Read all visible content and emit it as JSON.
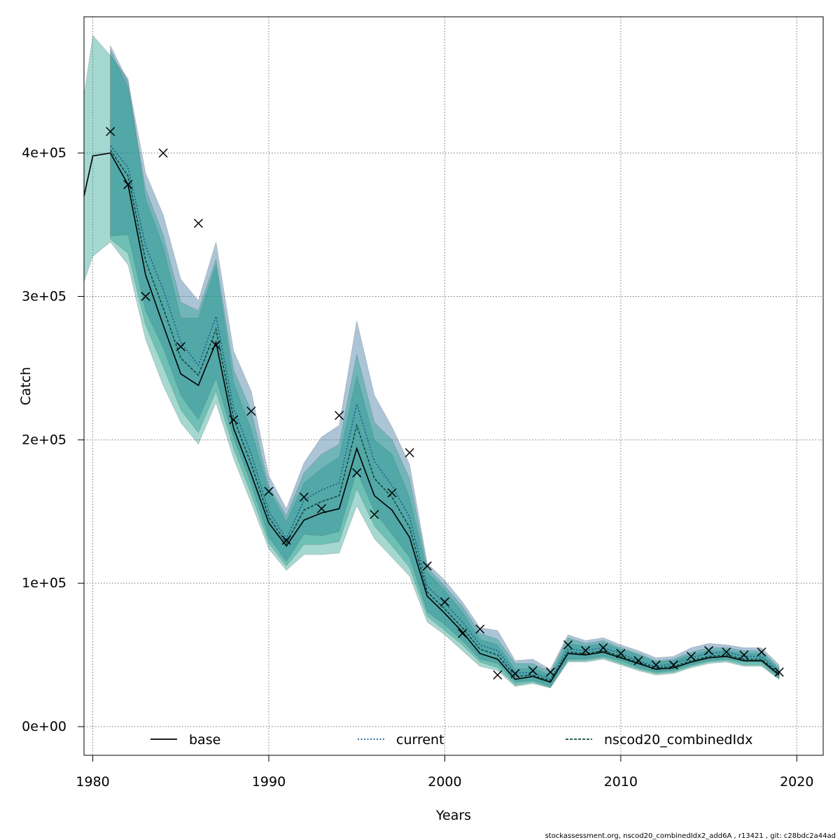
{
  "chart_data": {
    "type": "line",
    "title": "",
    "xlabel": "Years",
    "ylabel": "Catch",
    "xlim": [
      1979.5,
      2021.5
    ],
    "ylim": [
      -20000,
      495000
    ],
    "x_ticks": [
      1980,
      1990,
      2000,
      2010,
      2020
    ],
    "x_tick_labels": [
      "1980",
      "1990",
      "2000",
      "2010",
      "2020"
    ],
    "y_ticks": [
      0,
      100000,
      200000,
      300000,
      400000
    ],
    "y_tick_labels": [
      "0e+00",
      "1e+05",
      "2e+05",
      "3e+05",
      "4e+05"
    ],
    "grid": true,
    "legend_position": "bottom",
    "colors": {
      "band_primary": "#1f9d8a",
      "band_secondary": "#2d6e9b",
      "band_edge": "#555555",
      "line_base": "#000000",
      "line_current": "#1a5c8c",
      "line_combined": "#0f4a40",
      "grid": "#777777"
    },
    "legend": [
      {
        "label": "base",
        "style": "solid"
      },
      {
        "label": "current",
        "style": "dotted"
      },
      {
        "label": "nscod20_combinedIdx",
        "style": "dashed"
      }
    ],
    "series": [
      {
        "name": "base",
        "x": [
          1979.5,
          1980,
          1981,
          1982,
          1983,
          1984,
          1985,
          1986,
          1987,
          1988,
          1989,
          1990,
          1991,
          1992,
          1993,
          1994,
          1995,
          1996,
          1997,
          1998,
          1999,
          2000,
          2001,
          2002,
          2003,
          2004,
          2005,
          2006,
          2007,
          2008,
          2009,
          2010,
          2011,
          2012,
          2013,
          2014,
          2015,
          2016,
          2017,
          2018,
          2019
        ],
        "values": [
          370000,
          398000,
          400000,
          378000,
          315000,
          280000,
          246000,
          238000,
          268000,
          208000,
          176000,
          142000,
          126000,
          144000,
          149000,
          152000,
          194000,
          161000,
          151000,
          132000,
          91000,
          79000,
          66000,
          51000,
          47000,
          33000,
          35000,
          31000,
          51000,
          50000,
          52000,
          48000,
          44000,
          40000,
          41000,
          45000,
          48000,
          49000,
          46000,
          46000,
          36000
        ],
        "lower": [
          310000,
          328000,
          338000,
          322000,
          270000,
          238000,
          212000,
          197000,
          226000,
          187000,
          156000,
          124000,
          109000,
          120000,
          120000,
          121000,
          154000,
          131000,
          118000,
          105000,
          73000,
          64000,
          53000,
          42000,
          39000,
          28000,
          30000,
          27000,
          45000,
          45000,
          47000,
          43000,
          39000,
          36000,
          37000,
          41000,
          44000,
          45000,
          42000,
          42000,
          33000
        ],
        "upper": [
          440000,
          482000,
          468000,
          452000,
          368000,
          335000,
          285000,
          285000,
          322000,
          240000,
          207000,
          165000,
          143000,
          170000,
          180000,
          188000,
          245000,
          200000,
          190000,
          160000,
          108000,
          95000,
          80000,
          61000,
          57000,
          40000,
          41000,
          36000,
          58000,
          56000,
          58000,
          54000,
          50000,
          45000,
          46000,
          50000,
          53000,
          53000,
          51000,
          51000,
          40000
        ]
      },
      {
        "name": "current",
        "x": [
          1981,
          1982,
          1983,
          1984,
          1985,
          1986,
          1987,
          1988,
          1989,
          1990,
          1991,
          1992,
          1993,
          1994,
          1995,
          1996,
          1997,
          1998,
          1999,
          2000,
          2001,
          2002,
          2003,
          2004,
          2005,
          2006,
          2007,
          2008,
          2009,
          2010,
          2011,
          2012,
          2013,
          2014,
          2015,
          2016,
          2017,
          2018,
          2019
        ],
        "values": [
          405000,
          390000,
          335000,
          305000,
          268000,
          252000,
          286000,
          222000,
          190000,
          150000,
          131000,
          158000,
          165000,
          170000,
          225000,
          185000,
          168000,
          146000,
          98000,
          86000,
          73000,
          57000,
          53000,
          37000,
          38000,
          33000,
          54000,
          53000,
          55000,
          51000,
          46000,
          42000,
          44000,
          48000,
          51000,
          52000,
          49000,
          49000,
          38000
        ],
        "lower": [
          342000,
          343000,
          290000,
          264000,
          231000,
          214000,
          243000,
          201000,
          169000,
          132000,
          115000,
          134000,
          133000,
          136000,
          178000,
          150000,
          134000,
          118000,
          80000,
          71000,
          60000,
          47000,
          44000,
          31000,
          32000,
          28000,
          47000,
          47000,
          49000,
          46000,
          41000,
          38000,
          39000,
          43000,
          46000,
          47000,
          45000,
          45000,
          34000
        ],
        "upper": [
          475000,
          450000,
          386000,
          357000,
          312000,
          297000,
          338000,
          262000,
          234000,
          175000,
          152000,
          184000,
          202000,
          210000,
          283000,
          231000,
          209000,
          183000,
          114000,
          102000,
          87000,
          69000,
          67000,
          46000,
          47000,
          40000,
          64000,
          60000,
          62000,
          57000,
          53000,
          48000,
          49000,
          55000,
          58000,
          57000,
          55000,
          55000,
          43000
        ]
      },
      {
        "name": "nscod20_combinedIdx",
        "x": [
          1981,
          1982,
          1983,
          1984,
          1985,
          1986,
          1987,
          1988,
          1989,
          1990,
          1991,
          1992,
          1993,
          1994,
          1995,
          1996,
          1997,
          1998,
          1999,
          2000,
          2001,
          2002,
          2003,
          2004,
          2005,
          2006,
          2007,
          2008,
          2009,
          2010,
          2011,
          2012,
          2013,
          2014,
          2015,
          2016,
          2017,
          2018,
          2019
        ],
        "values": [
          402000,
          384000,
          325000,
          292000,
          257000,
          245000,
          277000,
          215000,
          183000,
          146000,
          128000,
          151000,
          157000,
          161000,
          210000,
          173000,
          160000,
          139000,
          94000,
          82000,
          69000,
          54000,
          50000,
          35000,
          36000,
          32000,
          52000,
          51000,
          53000,
          49000,
          45000,
          41000,
          42000,
          46000,
          49000,
          50000,
          47000,
          47000,
          37000
        ],
        "lower": [
          340000,
          330000,
          280000,
          251000,
          221000,
          205000,
          234000,
          194000,
          162000,
          128000,
          112000,
          127000,
          127000,
          129000,
          166000,
          140000,
          126000,
          111000,
          77000,
          67000,
          57000,
          45000,
          41000,
          29000,
          31000,
          27000,
          46000,
          46000,
          48000,
          44000,
          40000,
          37000,
          38000,
          42000,
          45000,
          46000,
          43000,
          43000,
          33000
        ],
        "upper": [
          472000,
          445000,
          375000,
          343000,
          296000,
          290000,
          326000,
          249000,
          220000,
          168000,
          147000,
          177000,
          190000,
          197000,
          260000,
          212000,
          200000,
          173000,
          111000,
          98000,
          84000,
          65000,
          61000,
          44000,
          44000,
          38000,
          62000,
          58000,
          60000,
          55000,
          51000,
          46000,
          47000,
          52000,
          55000,
          55000,
          53000,
          53000,
          41000
        ]
      },
      {
        "name": "",
        "type": "scatter",
        "marker": "x",
        "x": [
          1981,
          1982,
          1983,
          1984,
          1985,
          1986,
          1987,
          1988,
          1989,
          1990,
          1991,
          1992,
          1993,
          1994,
          1995,
          1996,
          1997,
          1998,
          1999,
          2000,
          2001,
          2002,
          2003,
          2004,
          2005,
          2006,
          2007,
          2008,
          2009,
          2010,
          2011,
          2012,
          2013,
          2014,
          2015,
          2016,
          2017,
          2018,
          2019
        ],
        "values": [
          415000,
          378000,
          300000,
          400000,
          265000,
          351000,
          266000,
          214000,
          220000,
          164000,
          130000,
          160000,
          152000,
          217000,
          177000,
          148000,
          163000,
          191000,
          112000,
          87000,
          65000,
          68000,
          36000,
          37000,
          39000,
          38000,
          57000,
          53000,
          55000,
          51000,
          46000,
          43000,
          43000,
          49000,
          53000,
          52000,
          50000,
          52000,
          38000
        ]
      }
    ],
    "footer": "stockassessment.org, nscod20_combinedIdx2_add6A , r13421 , git: c28bdc2a44ad"
  }
}
